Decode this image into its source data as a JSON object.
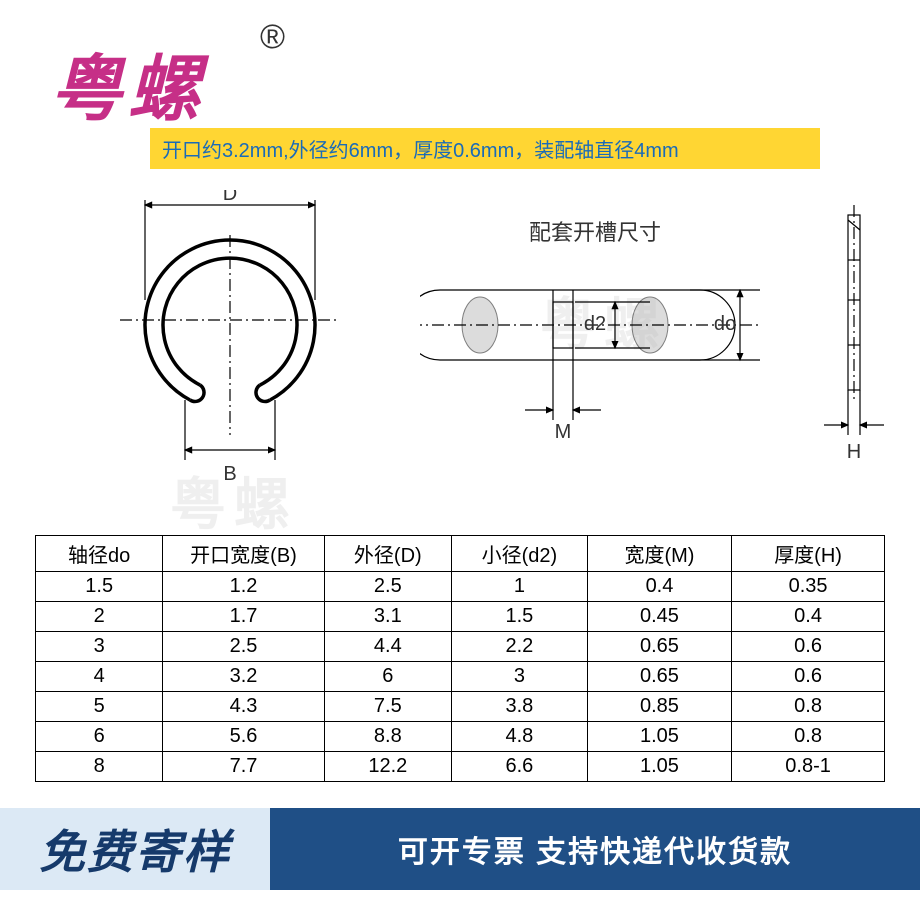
{
  "logo": {
    "text": "粤螺",
    "reg": "®",
    "color": "#c62f87"
  },
  "spec": {
    "text": "开口约3.2mm,外径约6mm，厚度0.6mm，装配轴直径4mm",
    "bg": "#ffd633",
    "color": "#1a6bb8",
    "fontsize": 20
  },
  "diagram": {
    "cring": {
      "top_label": "D",
      "bottom_label": "B"
    },
    "shaft": {
      "title": "配套开槽尺寸",
      "d2": "d2",
      "do": "do",
      "M": "M"
    },
    "side": {
      "H": "H"
    }
  },
  "watermark": "粤螺",
  "table": {
    "columns": [
      "轴径do",
      "开口宽度(B)",
      "外径(D)",
      "小径(d2)",
      "宽度(M)",
      "厚度(H)"
    ],
    "rows": [
      [
        "1.5",
        "1.2",
        "2.5",
        "1",
        "0.4",
        "0.35"
      ],
      [
        "2",
        "1.7",
        "3.1",
        "1.5",
        "0.45",
        "0.4"
      ],
      [
        "3",
        "2.5",
        "4.4",
        "2.2",
        "0.65",
        "0.6"
      ],
      [
        "4",
        "3.2",
        "6",
        "3",
        "0.65",
        "0.6"
      ],
      [
        "5",
        "4.3",
        "7.5",
        "3.8",
        "0.85",
        "0.8"
      ],
      [
        "6",
        "5.6",
        "8.8",
        "4.8",
        "1.05",
        "0.8"
      ],
      [
        "8",
        "7.7",
        "12.2",
        "6.6",
        "1.05",
        "0.8-1"
      ]
    ],
    "col_widths": [
      "15%",
      "19%",
      "15%",
      "16%",
      "17%",
      "18%"
    ]
  },
  "banner": {
    "left": "免费寄样",
    "right": "可开专票 支持快递代收货款",
    "left_bg": "#dce9f5",
    "left_color": "#163a6b",
    "right_bg": "#1f4f86",
    "right_color": "#ffffff"
  }
}
